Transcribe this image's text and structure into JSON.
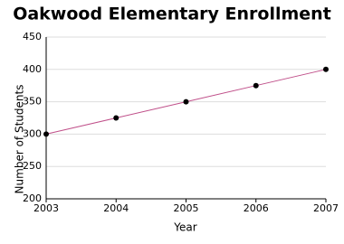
{
  "chart_data": {
    "type": "line",
    "title": "Oakwood Elementary Enrollment",
    "x_label": "Year",
    "y_label": "Number of Students",
    "x": [
      2003,
      2004,
      2005,
      2006,
      2007
    ],
    "series": [
      {
        "name": "Enrollment",
        "color": "#c0508a",
        "values": [
          300,
          325,
          350,
          375,
          400
        ]
      }
    ],
    "xlim": [
      2003,
      2007
    ],
    "xticks": [
      2003,
      2004,
      2005,
      2006,
      2007
    ],
    "ylim": [
      200,
      450
    ],
    "yticks": [
      200,
      250,
      300,
      350,
      400,
      450
    ],
    "grid": true
  }
}
